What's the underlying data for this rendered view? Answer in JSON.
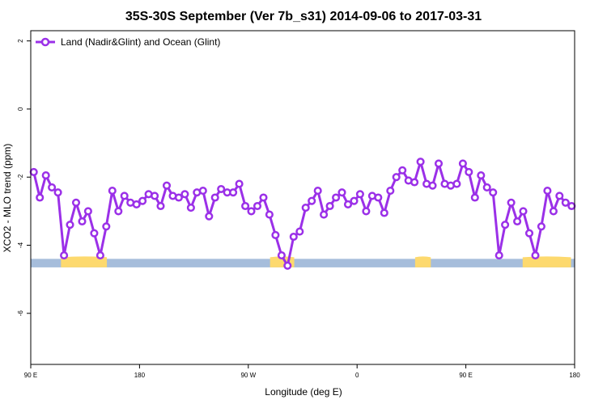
{
  "chart_data": {
    "type": "line",
    "title": "35S-30S September (Ver 7b_s31)   2014-09-06 to 2017-03-31",
    "xlabel": "Longitude (deg E)",
    "ylabel": "XCO2 - MLO trend (ppm)",
    "x_ticks": [
      {
        "value": 90,
        "label": "90 E"
      },
      {
        "value": 180,
        "label": "180"
      },
      {
        "value": 270,
        "label": "90 W"
      },
      {
        "value": 360,
        "label": "0"
      },
      {
        "value": 450,
        "label": "90 E"
      },
      {
        "value": 540,
        "label": "180"
      }
    ],
    "y_ticks": [
      {
        "value": 2,
        "label": "2"
      },
      {
        "value": 0,
        "label": "0"
      },
      {
        "value": -2,
        "label": "-2"
      },
      {
        "value": -4,
        "label": "-4"
      },
      {
        "value": -6,
        "label": "-6"
      }
    ],
    "xlim": [
      90,
      540
    ],
    "ylim": [
      -7.5,
      2.3
    ],
    "grid": false,
    "legend_position": "top-left",
    "series": [
      {
        "name": "Land (Nadir&Glint) and Ocean (Glint)",
        "color": "#9b30e8",
        "x": [
          92.5,
          97.5,
          102.5,
          107.5,
          112.5,
          117.5,
          122.5,
          127.5,
          132.5,
          137.5,
          142.5,
          147.5,
          152.5,
          157.5,
          162.5,
          167.5,
          172.5,
          177.5,
          182.5,
          187.5,
          192.5,
          197.5,
          202.5,
          207.5,
          212.5,
          217.5,
          222.5,
          227.5,
          232.5,
          237.5,
          242.5,
          247.5,
          252.5,
          257.5,
          262.5,
          267.5,
          272.5,
          277.5,
          282.5,
          287.5,
          292.5,
          297.5,
          302.5,
          307.5,
          312.5,
          317.5,
          322.5,
          327.5,
          332.5,
          337.5,
          342.5,
          347.5,
          352.5,
          357.5,
          362.5,
          367.5,
          372.5,
          377.5,
          382.5,
          387.5,
          392.5,
          397.5,
          402.5,
          407.5,
          412.5,
          417.5,
          422.5,
          427.5,
          432.5,
          437.5,
          442.5,
          447.5,
          452.5,
          457.5,
          462.5,
          467.5,
          472.5,
          477.5,
          482.5,
          487.5,
          492.5,
          497.5,
          502.5,
          507.5,
          512.5,
          517.5,
          522.5,
          527.5,
          532.5,
          537.5
        ],
        "values": [
          -1.85,
          -2.6,
          -1.95,
          -2.3,
          -2.45,
          -4.3,
          -3.4,
          -2.75,
          -3.3,
          -3.0,
          -3.65,
          -4.3,
          -3.45,
          -2.4,
          -3.0,
          -2.55,
          -2.75,
          -2.8,
          -2.7,
          -2.5,
          -2.55,
          -2.85,
          -2.25,
          -2.55,
          -2.6,
          -2.5,
          -2.9,
          -2.45,
          -2.4,
          -3.15,
          -2.6,
          -2.35,
          -2.45,
          -2.45,
          -2.2,
          -2.85,
          -3.0,
          -2.85,
          -2.6,
          -3.1,
          -3.7,
          -4.3,
          -4.6,
          -3.75,
          -3.6,
          -2.9,
          -2.7,
          -2.4,
          -3.1,
          -2.85,
          -2.6,
          -2.45,
          -2.8,
          -2.7,
          -2.5,
          -3.0,
          -2.55,
          -2.6,
          -3.05,
          -2.4,
          -2.0,
          -1.8,
          -2.1,
          -2.15,
          -1.55,
          -2.2,
          -2.25,
          -1.6,
          -2.2,
          -2.25,
          -2.2,
          -1.6,
          -1.85,
          -2.6,
          -1.95,
          -2.3,
          -2.45,
          -4.3,
          -3.4,
          -2.75,
          -3.3,
          -3.0,
          -3.65,
          -4.3,
          -3.45,
          -2.4,
          -3.0,
          -2.55,
          -2.75,
          -2.85
        ]
      }
    ],
    "land_ocean_band": {
      "y_top": -4.4,
      "y_bottom": -4.65,
      "ocean_color": "#a6bddb",
      "land_color": "#fdd96e",
      "land_segments": [
        [
          115,
          153
        ],
        [
          288,
          308
        ],
        [
          408,
          421
        ],
        [
          497,
          537
        ]
      ]
    }
  }
}
